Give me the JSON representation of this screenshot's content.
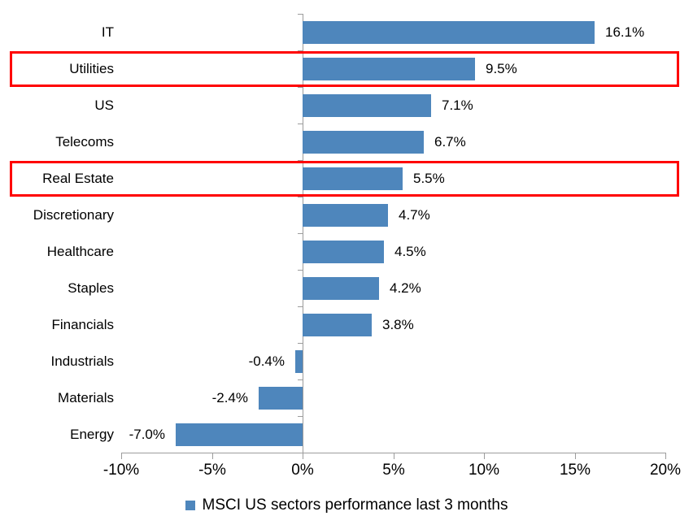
{
  "chart_data": {
    "type": "bar",
    "orientation": "horizontal",
    "title": "",
    "categories": [
      "IT",
      "Utilities",
      "US",
      "Telecoms",
      "Real Estate",
      "Discretionary",
      "Healthcare",
      "Staples",
      "Financials",
      "Industrials",
      "Materials",
      "Energy"
    ],
    "values": [
      16.1,
      9.5,
      7.1,
      6.7,
      5.5,
      4.7,
      4.5,
      4.2,
      3.8,
      -0.4,
      -2.4,
      -7.0
    ],
    "value_labels": [
      "16.1%",
      "9.5%",
      "7.1%",
      "6.7%",
      "5.5%",
      "4.7%",
      "4.5%",
      "4.2%",
      "3.8%",
      "-0.4%",
      "-2.4%",
      "-7.0%"
    ],
    "xlim": [
      -10,
      20
    ],
    "x_ticks": [
      -10,
      -5,
      0,
      5,
      10,
      15,
      20
    ],
    "x_tick_labels": [
      "-10%",
      "-5%",
      "0%",
      "5%",
      "10%",
      "15%",
      "20%"
    ],
    "grid": false,
    "highlighted_categories": [
      "Utilities",
      "Real Estate"
    ],
    "legend": {
      "position": "bottom",
      "label": "MSCI US sectors performance last 3 months"
    },
    "colors": {
      "bar": "#4E86BC",
      "highlight_box": "#FF0000",
      "axis": "#9C9C9C",
      "text": "#000000",
      "background": "#FFFFFF"
    }
  }
}
